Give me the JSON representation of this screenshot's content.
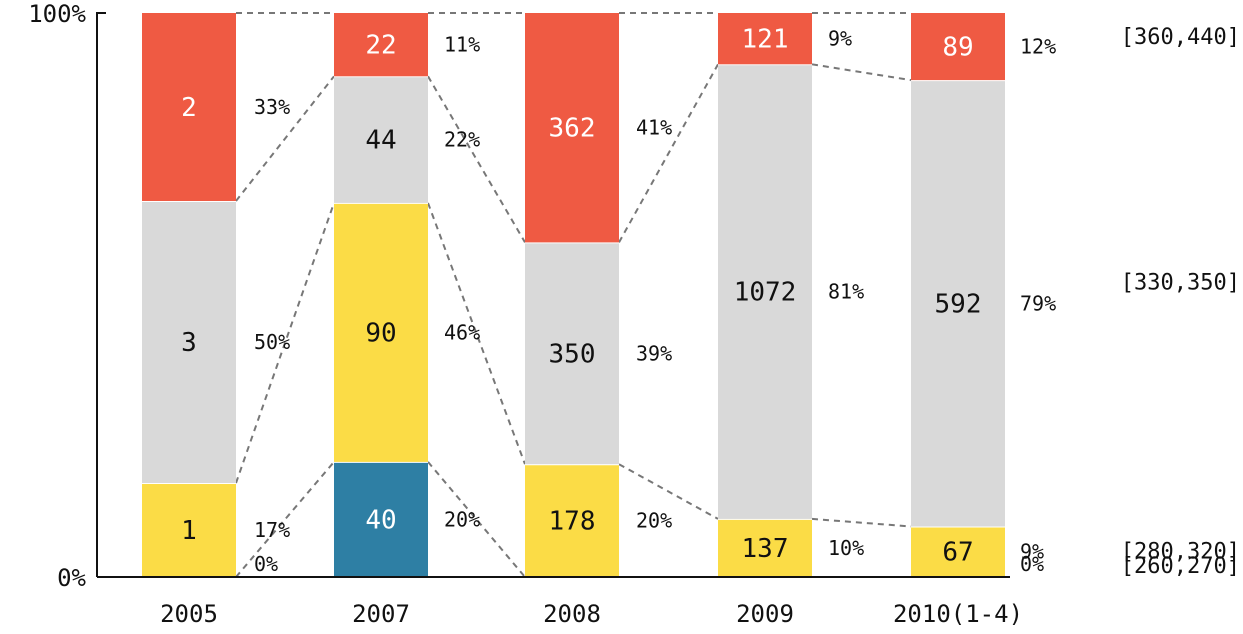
{
  "chart_data": {
    "type": "bar",
    "stacked": "100%",
    "title": "",
    "xlabel": "",
    "ylabel": "",
    "ylim": [
      0,
      100
    ],
    "y_tick_labels": [
      "0%",
      "100%"
    ],
    "categories": [
      "2005",
      "2007",
      "2008",
      "2009",
      "2010(1-4)"
    ],
    "series": [
      {
        "name": "[260,270]",
        "color": "#2e7fa4",
        "values": [
          0,
          40,
          0,
          0,
          0
        ],
        "labels": [
          "",
          "40",
          "",
          "",
          ""
        ],
        "label_color": "#ffffff"
      },
      {
        "name": "[280,320]",
        "color": "#fbdc46",
        "values": [
          1,
          90,
          178,
          137,
          67
        ],
        "labels": [
          "1",
          "90",
          "178",
          "137",
          "67"
        ],
        "label_color": "#111111"
      },
      {
        "name": "[330,350]",
        "color": "#d9d9d9",
        "values": [
          3,
          44,
          350,
          1072,
          592
        ],
        "labels": [
          "3",
          "44",
          "350",
          "1072",
          "592"
        ],
        "label_color": "#111111"
      },
      {
        "name": "[360,440]",
        "color": "#ef5a43",
        "values": [
          2,
          22,
          362,
          121,
          89
        ],
        "labels": [
          "2",
          "22",
          "362",
          "121",
          "89"
        ],
        "label_color": "#ffffff"
      }
    ],
    "percent_labels": [
      [
        "0%",
        "17%",
        "50%",
        "33%"
      ],
      [
        "20%",
        "46%",
        "22%",
        "11%"
      ],
      [
        "",
        "20%",
        "39%",
        "41%"
      ],
      [
        "",
        "10%",
        "81%",
        "9%"
      ],
      [
        "0%",
        "9%",
        "79%",
        "12%"
      ]
    ],
    "legend": [
      "[260,270]",
      "[280,320]",
      "[330,350]",
      "[360,440]"
    ],
    "legend_position": "right",
    "grid": false
  }
}
